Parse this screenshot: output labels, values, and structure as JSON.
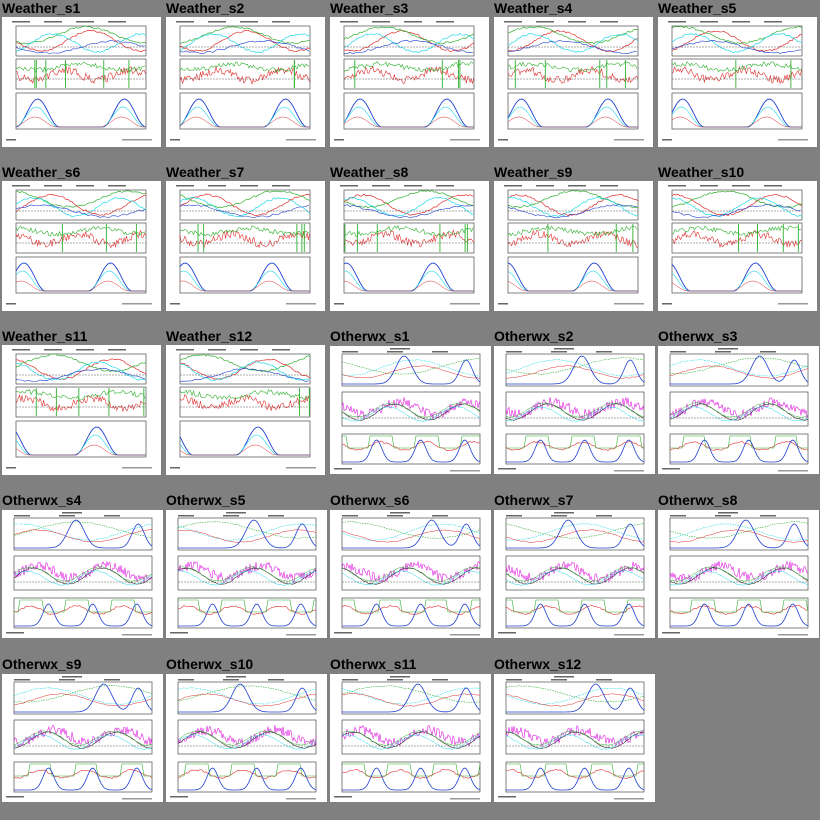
{
  "colors": {
    "background": "#808080",
    "panel": "#ffffff",
    "red": "#e03030",
    "green": "#30b030",
    "blue": "#2040d0",
    "cyan": "#20d8e8",
    "magenta": "#e020e0",
    "dark": "#303030"
  },
  "tiles": [
    {
      "title": "Weather_s1",
      "kind": "weather"
    },
    {
      "title": "Weather_s2",
      "kind": "weather"
    },
    {
      "title": "Weather_s3",
      "kind": "weather"
    },
    {
      "title": "Weather_s4",
      "kind": "weather"
    },
    {
      "title": "Weather_s5",
      "kind": "weather"
    },
    {
      "title": "Weather_s6",
      "kind": "weather"
    },
    {
      "title": "Weather_s7",
      "kind": "weather"
    },
    {
      "title": "Weather_s8",
      "kind": "weather"
    },
    {
      "title": "Weather_s9",
      "kind": "weather"
    },
    {
      "title": "Weather_s10",
      "kind": "weather"
    },
    {
      "title": "Weather_s11",
      "kind": "weather"
    },
    {
      "title": "Weather_s12",
      "kind": "weather"
    },
    {
      "title": "Otherwx_s1",
      "kind": "otherwx"
    },
    {
      "title": "Otherwx_s2",
      "kind": "otherwx"
    },
    {
      "title": "Otherwx_s3",
      "kind": "otherwx"
    },
    {
      "title": "Otherwx_s4",
      "kind": "otherwx"
    },
    {
      "title": "Otherwx_s5",
      "kind": "otherwx"
    },
    {
      "title": "Otherwx_s6",
      "kind": "otherwx"
    },
    {
      "title": "Otherwx_s7",
      "kind": "otherwx"
    },
    {
      "title": "Otherwx_s8",
      "kind": "otherwx"
    },
    {
      "title": "Otherwx_s9",
      "kind": "otherwx"
    },
    {
      "title": "Otherwx_s10",
      "kind": "otherwx"
    },
    {
      "title": "Otherwx_s11",
      "kind": "otherwx"
    },
    {
      "title": "Otherwx_s12",
      "kind": "otherwx"
    }
  ]
}
